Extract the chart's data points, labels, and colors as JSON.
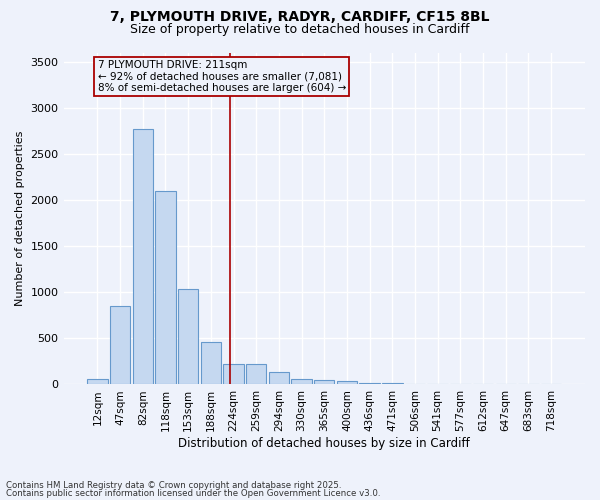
{
  "title_line1": "7, PLYMOUTH DRIVE, RADYR, CARDIFF, CF15 8BL",
  "title_line2": "Size of property relative to detached houses in Cardiff",
  "xlabel": "Distribution of detached houses by size in Cardiff",
  "ylabel": "Number of detached properties",
  "categories": [
    "12sqm",
    "47sqm",
    "82sqm",
    "118sqm",
    "153sqm",
    "188sqm",
    "224sqm",
    "259sqm",
    "294sqm",
    "330sqm",
    "365sqm",
    "400sqm",
    "436sqm",
    "471sqm",
    "506sqm",
    "541sqm",
    "577sqm",
    "612sqm",
    "647sqm",
    "683sqm",
    "718sqm"
  ],
  "values": [
    60,
    850,
    2775,
    2100,
    1035,
    460,
    220,
    220,
    130,
    60,
    50,
    35,
    15,
    15,
    0,
    0,
    0,
    0,
    0,
    0,
    0
  ],
  "bar_color": "#c5d8f0",
  "bar_edge_color": "#6699cc",
  "annotation_label": "7 PLYMOUTH DRIVE: 211sqm",
  "annotation_smaller": "← 92% of detached houses are smaller (7,081)",
  "annotation_larger": "8% of semi-detached houses are larger (604) →",
  "vline_color": "#aa0000",
  "box_edge_color": "#aa0000",
  "ylim": [
    0,
    3600
  ],
  "yticks": [
    0,
    500,
    1000,
    1500,
    2000,
    2500,
    3000,
    3500
  ],
  "footer_line1": "Contains HM Land Registry data © Crown copyright and database right 2025.",
  "footer_line2": "Contains public sector information licensed under the Open Government Licence v3.0.",
  "bg_color": "#eef2fb",
  "grid_color": "#ffffff",
  "title_fontsize": 10,
  "subtitle_fontsize": 9,
  "vline_x": 5.85
}
